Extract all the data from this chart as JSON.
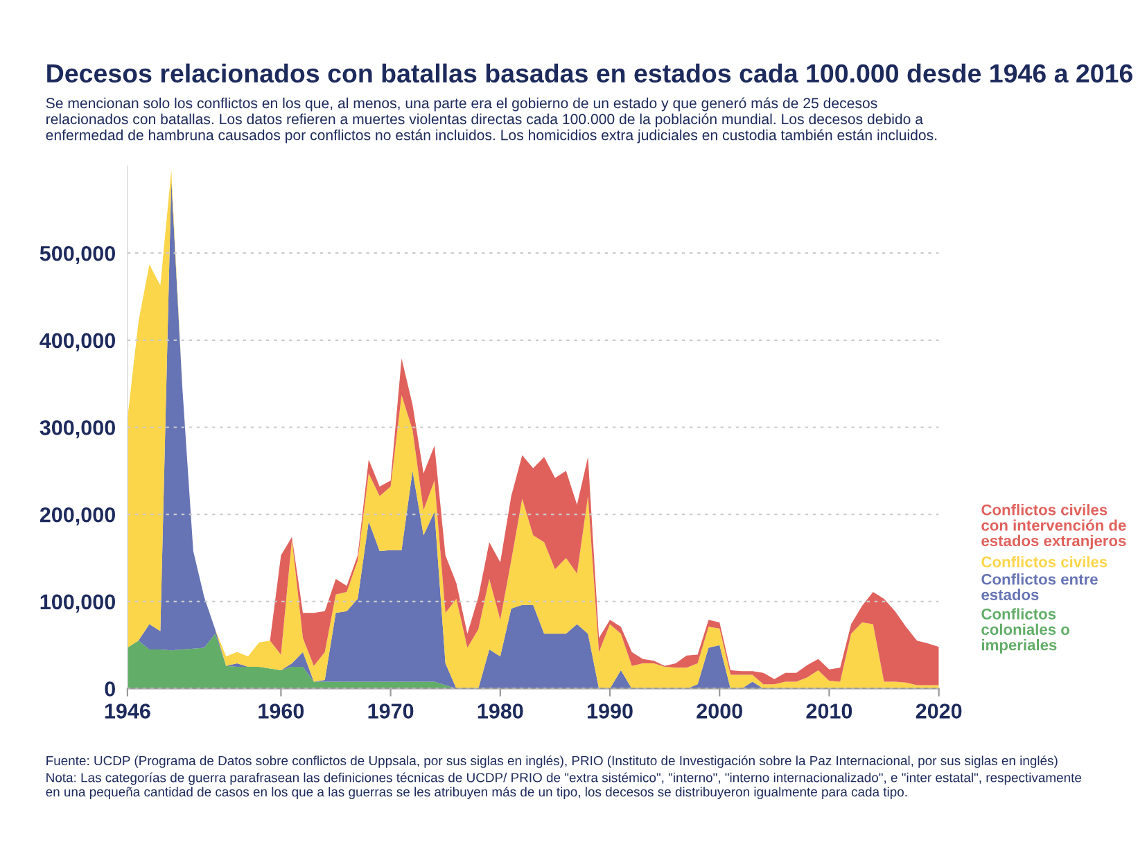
{
  "chart_data": {
    "type": "area",
    "stacked": true,
    "title": "Decesos relacionados con batallas basadas en estados cada 100.000 desde 1946 a 2016",
    "subtitle": "Se mencionan solo los conflictos en los que, al menos, una parte era el gobierno de un estado y que generó más de 25 decesos relacionados con batallas. Los datos refieren a muertes violentas directas cada 100.000 de la población mundial. Los decesos debido a enfermedad de hambruna causados por conflictos no están incluidos. Los homicidios extra judiciales en custodia también están incluidos.",
    "annotations": [
      "Fuente: UCDP (Programa de Datos sobre conflictos de Uppsala, por sus siglas en inglés), PRIO (Instituto de Investigación sobre la Paz Internacional, por sus siglas en inglés)",
      "Nota: Las categorías de guerra parafrasean las definiciones técnicas de UCDP/ PRIO de \"extra sistémico\", \"interno\", \"interno internacionalizado\", e \"inter estatal\", respectivamente en una pequeña cantidad de casos en los que a las guerras se les atribuyen más de un tipo, los decesos se distribuyeron igualmente para cada tipo."
    ],
    "x": [
      1946,
      1947,
      1948,
      1949,
      1950,
      1951,
      1952,
      1953,
      1954,
      1955,
      1956,
      1957,
      1958,
      1959,
      1960,
      1961,
      1962,
      1963,
      1964,
      1965,
      1966,
      1967,
      1968,
      1969,
      1970,
      1971,
      1972,
      1973,
      1974,
      1975,
      1976,
      1977,
      1978,
      1979,
      1980,
      1981,
      1982,
      1983,
      1984,
      1985,
      1986,
      1987,
      1988,
      1989,
      1990,
      1991,
      1992,
      1993,
      1994,
      1995,
      1996,
      1997,
      1998,
      1999,
      2000,
      2001,
      2002,
      2003,
      2004,
      2005,
      2006,
      2007,
      2008,
      2009,
      2010,
      2011,
      2012,
      2013,
      2014,
      2015,
      2016,
      2017,
      2018,
      2019,
      2020
    ],
    "series": [
      {
        "name": "Conflictos coloniales o imperiales",
        "color": "#62ad68",
        "values": [
          47000,
          55000,
          45000,
          45000,
          44000,
          45000,
          46000,
          47000,
          63000,
          26000,
          25000,
          25000,
          25000,
          23000,
          21000,
          25000,
          25000,
          8000,
          8000,
          8000,
          8000,
          8000,
          8000,
          8000,
          8000,
          8000,
          8000,
          8000,
          8000,
          4000,
          0,
          0,
          0,
          0,
          0,
          0,
          0,
          0,
          0,
          0,
          0,
          0,
          0,
          0,
          0,
          0,
          0,
          0,
          0,
          0,
          0,
          0,
          0,
          0,
          0,
          0,
          0,
          0,
          0,
          0,
          0,
          0,
          0,
          0,
          0,
          0,
          0,
          0,
          0,
          0,
          0,
          0,
          0,
          0,
          0
        ]
      },
      {
        "name": "Conflictos entre estados",
        "color": "#6673b4",
        "values": [
          0,
          0,
          29000,
          21000,
          540000,
          302000,
          112000,
          58000,
          5000,
          0,
          4000,
          0,
          0,
          0,
          0,
          4000,
          17000,
          0,
          2000,
          79000,
          81000,
          95000,
          184000,
          150000,
          151000,
          151000,
          242000,
          168000,
          195000,
          25000,
          0,
          0,
          0,
          45000,
          37000,
          92000,
          96000,
          96000,
          63000,
          63000,
          63000,
          74000,
          63000,
          0,
          0,
          21000,
          0,
          0,
          0,
          0,
          0,
          0,
          5000,
          47000,
          50000,
          0,
          0,
          8000,
          0,
          0,
          0,
          0,
          0,
          0,
          0,
          0,
          0,
          0,
          0,
          0,
          0,
          0,
          0,
          0,
          0
        ]
      },
      {
        "name": "Conflictos civiles",
        "color": "#fbd54a",
        "values": [
          263000,
          366000,
          413000,
          397000,
          11000,
          0,
          0,
          0,
          0,
          11000,
          13000,
          12000,
          28000,
          32000,
          18000,
          142000,
          16000,
          18000,
          32000,
          21000,
          22000,
          44000,
          55000,
          63000,
          73000,
          178000,
          47000,
          29000,
          36000,
          58000,
          103000,
          47000,
          68000,
          81000,
          42000,
          55000,
          122000,
          80000,
          105000,
          74000,
          87000,
          58000,
          158000,
          42000,
          74000,
          42000,
          26000,
          29000,
          29000,
          25000,
          24000,
          24000,
          24000,
          24000,
          19000,
          16000,
          16000,
          8000,
          5000,
          5000,
          8000,
          8000,
          13000,
          21000,
          9000,
          8000,
          63000,
          76000,
          74000,
          8000,
          8000,
          7000,
          4000,
          4000,
          4000
        ]
      },
      {
        "name": "Conflictos civiles con intervención de estados extranjeros",
        "color": "#e0615c",
        "values": [
          0,
          0,
          0,
          0,
          0,
          0,
          0,
          0,
          0,
          0,
          0,
          0,
          0,
          0,
          114000,
          3000,
          29000,
          61000,
          47000,
          18000,
          7000,
          6000,
          16000,
          11000,
          7000,
          42000,
          29000,
          42000,
          40000,
          66000,
          18000,
          16000,
          37000,
          42000,
          66000,
          74000,
          50000,
          77000,
          98000,
          105000,
          100000,
          79000,
          45000,
          16000,
          5000,
          8000,
          16000,
          5000,
          3000,
          1000,
          5000,
          14000,
          10000,
          8000,
          7000,
          5000,
          4000,
          4000,
          13000,
          6000,
          10000,
          10000,
          14000,
          13000,
          13000,
          16000,
          11000,
          19000,
          37000,
          95000,
          81000,
          64000,
          51000,
          48000,
          44000
        ]
      }
    ],
    "xlim": [
      1946,
      2020
    ],
    "xticks": [
      1946,
      1960,
      1970,
      1980,
      1990,
      2000,
      2010,
      2020
    ],
    "ylim": [
      0,
      600000
    ],
    "yticks": [
      0,
      {
        "value": 100000,
        "label": "100,000"
      },
      {
        "value": 200000,
        "label": "200,000"
      },
      {
        "value": 300000,
        "label": "300,000"
      },
      {
        "value": 400000,
        "label": "400,000"
      },
      {
        "value": 500000,
        "label": "500,000"
      }
    ],
    "grid": "y",
    "legend": "right"
  }
}
